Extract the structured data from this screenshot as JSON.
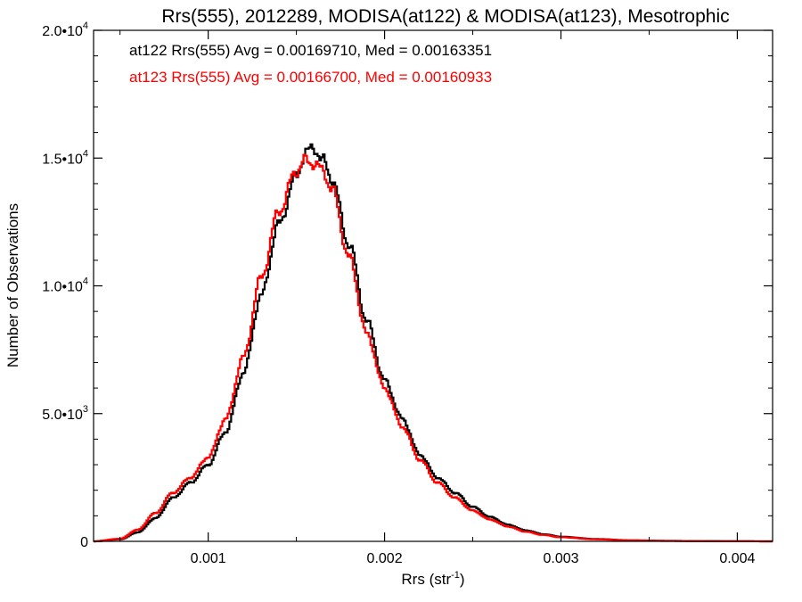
{
  "chart_data": {
    "type": "line",
    "title": "Rrs(555), 2012289, MODISA(at122) & MODISA(at123), Mesotrophic",
    "xlabel": "Rrs (str",
    "xlabel_sup": "-1",
    "xlabel_close": ")",
    "ylabel": "Number of Observations",
    "xlim": [
      0.00035,
      0.0042
    ],
    "ylim": [
      0,
      20000
    ],
    "x_ticks": [
      0.001,
      0.002,
      0.003,
      0.004
    ],
    "x_tick_labels": [
      "0.001",
      "0.002",
      "0.003",
      "0.004"
    ],
    "y_ticks": [
      0,
      5000,
      10000,
      15000,
      20000
    ],
    "y_tick_labels": [
      {
        "base": "0",
        "sup": ""
      },
      {
        "base": "5.0•10",
        "sup": "3"
      },
      {
        "base": "1.0•10",
        "sup": "4"
      },
      {
        "base": "1.5•10",
        "sup": "4"
      },
      {
        "base": "2.0•10",
        "sup": "4"
      }
    ],
    "grid": false,
    "series": [
      {
        "name": "at122",
        "color": "#000000",
        "x": [
          0.00035,
          0.0005,
          0.0006,
          0.0007,
          0.0008,
          0.0009,
          0.001,
          0.0011,
          0.0012,
          0.0013,
          0.0014,
          0.0015,
          0.00155,
          0.0016,
          0.00165,
          0.0017,
          0.0018,
          0.0019,
          0.002,
          0.0021,
          0.0022,
          0.0023,
          0.0024,
          0.0025,
          0.0026,
          0.0027,
          0.0028,
          0.0029,
          0.003,
          0.0032,
          0.0034,
          0.0036,
          0.0038,
          0.004,
          0.0042
        ],
        "y": [
          0,
          80,
          350,
          900,
          1700,
          2300,
          3000,
          4300,
          6600,
          9600,
          12400,
          14300,
          15200,
          15400,
          14900,
          14200,
          11600,
          8600,
          6300,
          4800,
          3400,
          2500,
          1900,
          1350,
          950,
          650,
          430,
          280,
          180,
          90,
          40,
          20,
          10,
          5,
          0
        ]
      },
      {
        "name": "at123",
        "color": "#ff0000",
        "x": [
          0.00035,
          0.0005,
          0.0006,
          0.0007,
          0.0008,
          0.0009,
          0.001,
          0.0011,
          0.0012,
          0.0013,
          0.0014,
          0.0015,
          0.00155,
          0.0016,
          0.00165,
          0.0017,
          0.0018,
          0.0019,
          0.002,
          0.0021,
          0.0022,
          0.0023,
          0.0024,
          0.0025,
          0.0026,
          0.0027,
          0.0028,
          0.0029,
          0.003,
          0.0032,
          0.0034,
          0.0036,
          0.0038,
          0.004,
          0.0042
        ],
        "y": [
          0,
          100,
          450,
          1100,
          1900,
          2500,
          3300,
          4800,
          7200,
          10300,
          12900,
          14500,
          14900,
          14800,
          14500,
          13800,
          11100,
          8100,
          6000,
          4500,
          3200,
          2300,
          1700,
          1200,
          850,
          580,
          380,
          250,
          160,
          80,
          35,
          18,
          8,
          4,
          0
        ]
      }
    ],
    "annotations": [
      {
        "text": "at122 Rrs(555) Avg = 0.00169710, Med = 0.00163351",
        "color": "#000000"
      },
      {
        "text": "at123 Rrs(555) Avg = 0.00166700, Med = 0.00160933",
        "color": "#ff0000"
      }
    ]
  }
}
